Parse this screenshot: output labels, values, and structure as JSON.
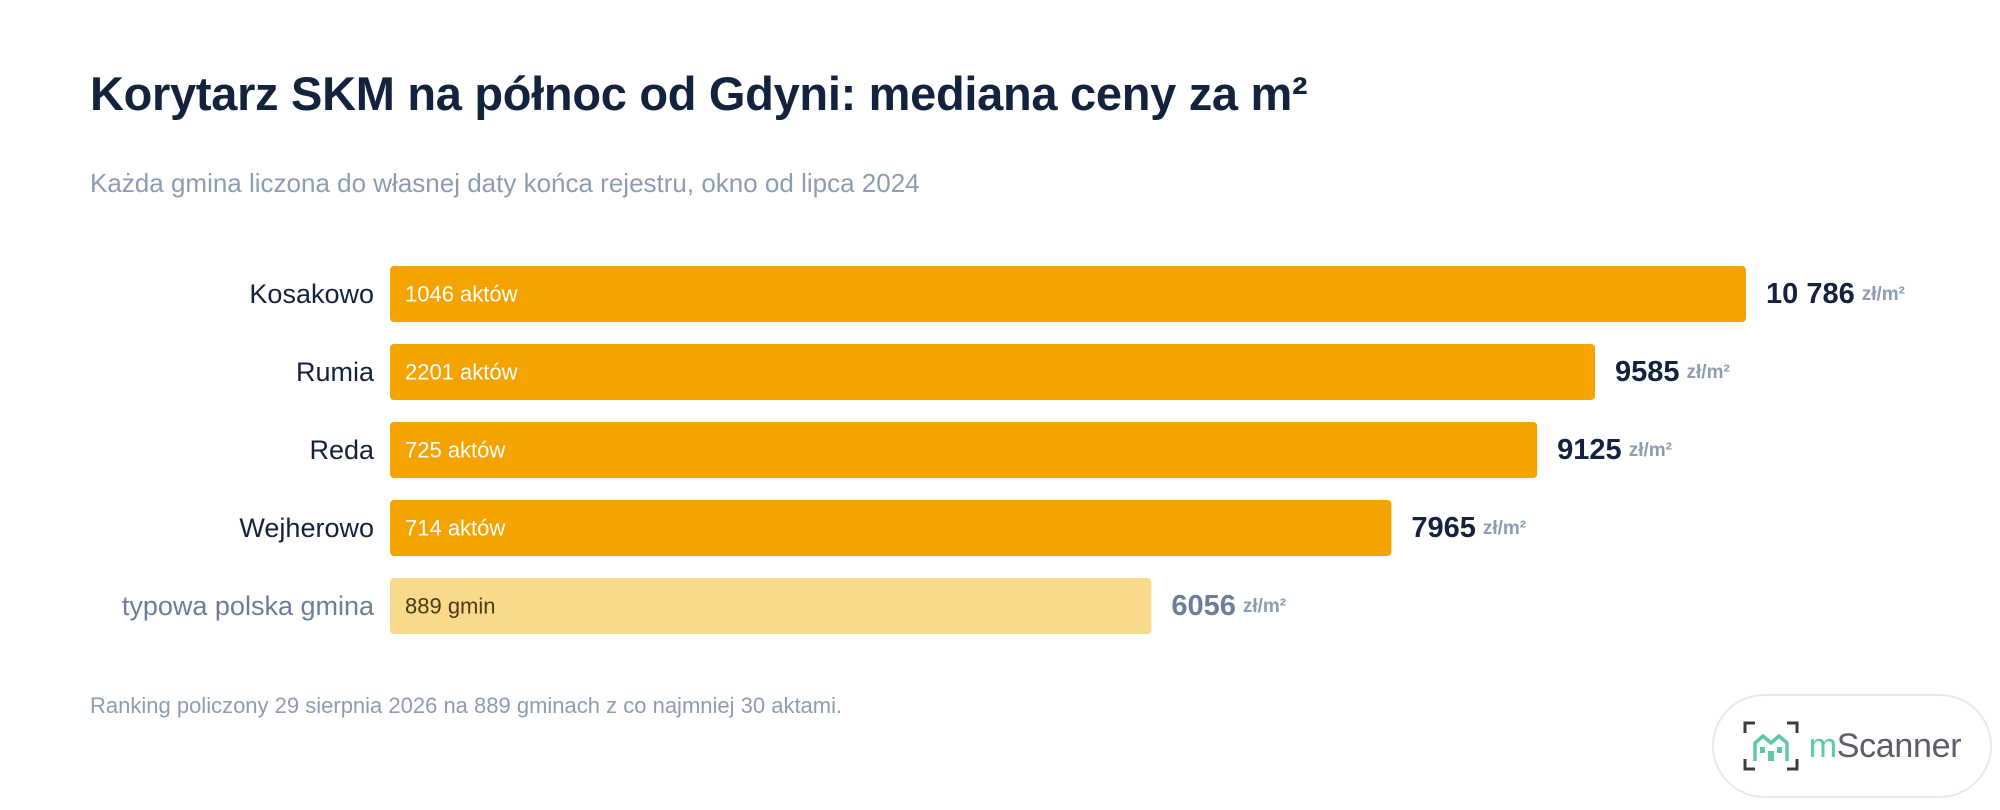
{
  "title": "Korytarz SKM na północ od Gdyni: mediana ceny za m²",
  "subtitle": "Każda gmina liczona do własnej daty końca rejestru, okno od lipca 2024",
  "footnote": "Ranking policzony 29 sierpnia 2026 na 889 gminach z co najmniej 30 aktami.",
  "logo": {
    "prefix": "m",
    "name": "Scanner"
  },
  "colors": {
    "bar_primary": "#f5a300",
    "bar_reference": "#f9d98a",
    "label_primary": "#13233d",
    "label_reference": "#6b7f99",
    "unit": "#8c9db3"
  },
  "chart_data": {
    "type": "bar",
    "orientation": "horizontal",
    "title": "Korytarz SKM na północ od Gdyni: mediana ceny za m²",
    "subtitle": "Każda gmina liczona do własnej daty końca rejestru, okno od lipca 2024",
    "xlim": [
      0,
      10786
    ],
    "grid": false,
    "unit": "zł/m²",
    "categories": [
      "Kosakowo",
      "Rumia",
      "Reda",
      "Wejherowo",
      "typowa polska gmina"
    ],
    "values": [
      10786,
      9585,
      9125,
      7965,
      6056
    ],
    "value_labels": [
      "10 786",
      "9585",
      "9125",
      "7965",
      "6056"
    ],
    "inner_labels": [
      "1046 aktów",
      "2201 aktów",
      "725 aktów",
      "714 aktów",
      "889 gmin"
    ],
    "reference": [
      false,
      false,
      false,
      false,
      true
    ]
  }
}
